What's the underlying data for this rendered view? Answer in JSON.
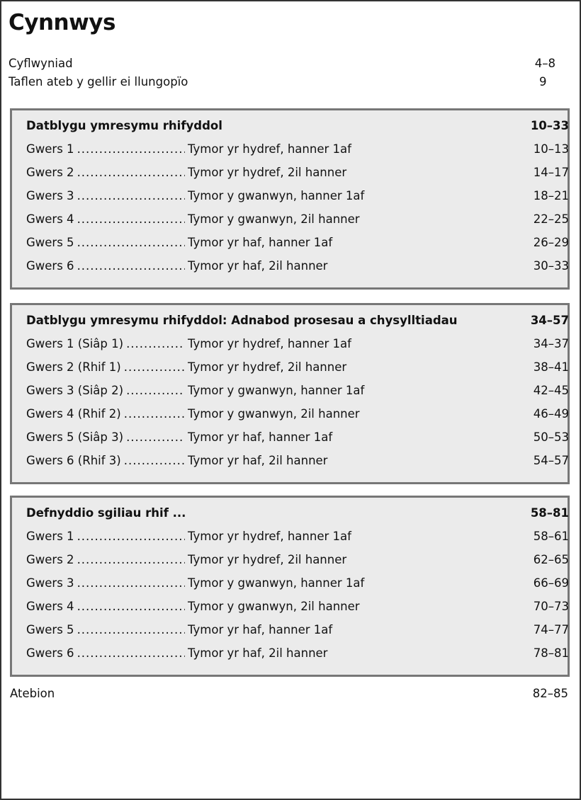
{
  "title": "Cynnwys",
  "intro": [
    {
      "label": "Cyflwyniad",
      "pages": "4–8"
    },
    {
      "label": "Taflen ateb y gellir ei llungopïo",
      "pages": "9"
    }
  ],
  "sections": [
    {
      "heading": "Datblygu ymresymu rhifyddol",
      "pages": "10–33",
      "lessons": [
        {
          "label": "Gwers 1",
          "term": "Tymor yr hydref, hanner 1af",
          "pages": "10–13"
        },
        {
          "label": "Gwers 2",
          "term": "Tymor yr hydref, 2il hanner",
          "pages": "14–17"
        },
        {
          "label": "Gwers 3",
          "term": "Tymor y gwanwyn, hanner 1af",
          "pages": "18–21"
        },
        {
          "label": "Gwers 4",
          "term": "Tymor y gwanwyn, 2il hanner",
          "pages": "22–25"
        },
        {
          "label": "Gwers 5",
          "term": "Tymor yr haf, hanner 1af",
          "pages": "26–29"
        },
        {
          "label": "Gwers 6",
          "term": "Tymor yr haf, 2il hanner",
          "pages": "30–33"
        }
      ]
    },
    {
      "heading": "Datblygu ymresymu rhifyddol: Adnabod prosesau a chysylltiadau",
      "pages": "34–57",
      "lessons": [
        {
          "label": "Gwers 1 (Siâp 1)",
          "term": "Tymor yr hydref, hanner 1af",
          "pages": "34–37"
        },
        {
          "label": "Gwers 2 (Rhif 1)",
          "term": "Tymor yr hydref, 2il hanner",
          "pages": "38–41"
        },
        {
          "label": "Gwers 3 (Siâp 2)",
          "term": "Tymor y gwanwyn, hanner 1af",
          "pages": "42–45"
        },
        {
          "label": "Gwers 4 (Rhif 2)",
          "term": "Tymor y gwanwyn, 2il hanner",
          "pages": "46–49"
        },
        {
          "label": "Gwers 5 (Siâp 3)",
          "term": "Tymor yr haf, hanner 1af",
          "pages": "50–53"
        },
        {
          "label": "Gwers 6 (Rhif 3)",
          "term": "Tymor yr haf, 2il hanner",
          "pages": "54–57"
        }
      ]
    },
    {
      "heading": "Defnyddio sgiliau rhif ...",
      "pages": "58–81",
      "lessons": [
        {
          "label": "Gwers 1",
          "term": "Tymor yr hydref, hanner 1af",
          "pages": "58–61"
        },
        {
          "label": "Gwers 2",
          "term": "Tymor yr hydref, 2il hanner",
          "pages": "62–65"
        },
        {
          "label": "Gwers 3",
          "term": "Tymor y gwanwyn, hanner 1af",
          "pages": "66–69"
        },
        {
          "label": "Gwers 4",
          "term": "Tymor y gwanwyn, 2il hanner",
          "pages": "70–73"
        },
        {
          "label": "Gwers 5",
          "term": "Tymor yr haf, hanner 1af",
          "pages": "74–77"
        },
        {
          "label": "Gwers 6",
          "term": "Tymor yr haf, 2il hanner",
          "pages": "78–81"
        }
      ]
    }
  ],
  "answers": {
    "label": "Atebion",
    "pages": "82–85"
  }
}
